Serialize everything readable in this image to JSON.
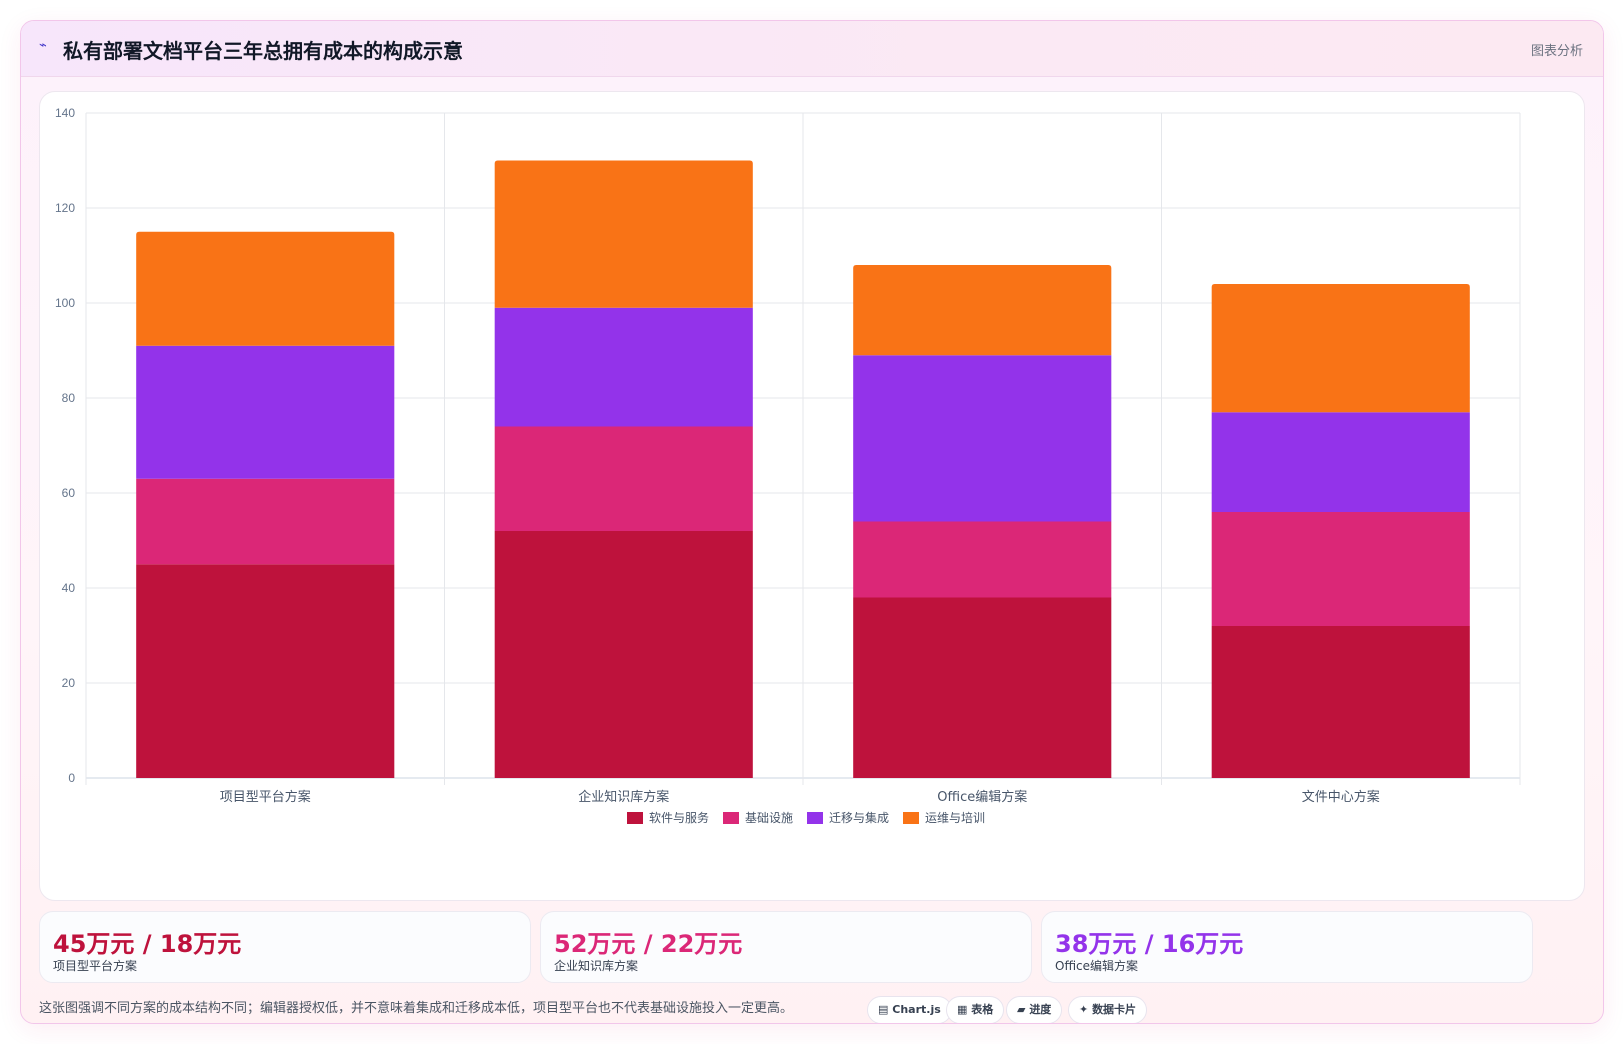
{
  "header": {
    "logo_glyph": "⌁",
    "title": "私有部署文档平台三年总拥有成本的构成示意",
    "right_label": "图表分析"
  },
  "chart_data": {
    "type": "bar",
    "stacked": true,
    "categories": [
      "项目型平台方案",
      "企业知识库方案",
      "Office编辑方案",
      "文件中心方案"
    ],
    "series": [
      {
        "name": "软件与服务",
        "color": "#be123c",
        "values": [
          45,
          52,
          38,
          32
        ]
      },
      {
        "name": "基础设施",
        "color": "#db2777",
        "values": [
          18,
          22,
          16,
          24
        ]
      },
      {
        "name": "迁移与集成",
        "color": "#9333ea",
        "values": [
          28,
          25,
          35,
          21
        ]
      },
      {
        "name": "运维与培训",
        "color": "#f97316",
        "values": [
          24,
          31,
          19,
          27
        ]
      }
    ],
    "ylim": [
      0,
      140
    ],
    "yticks": [
      0,
      20,
      40,
      60,
      80,
      100,
      120,
      140
    ],
    "grid": true,
    "legend": "bottom"
  },
  "stats": [
    {
      "value": "45万元 / 18万元",
      "label": "项目型平台方案",
      "color": "#be123c"
    },
    {
      "value": "52万元 / 22万元",
      "label": "企业知识库方案",
      "color": "#db2777"
    },
    {
      "value": "38万元 / 16万元",
      "label": "Office编辑方案",
      "color": "#9333ea"
    }
  ],
  "footer": {
    "note": "这张图强调不同方案的成本结构不同；编辑器授权低，并不意味着集成和迁移成本低，项目型平台也不代表基础设施投入一定更高。",
    "tags": [
      {
        "icon": "▤",
        "label": "Chart.js"
      },
      {
        "icon": "▦",
        "label": "表格"
      },
      {
        "icon": "▰",
        "label": "进度"
      },
      {
        "icon": "✦",
        "label": "数据卡片"
      }
    ]
  }
}
